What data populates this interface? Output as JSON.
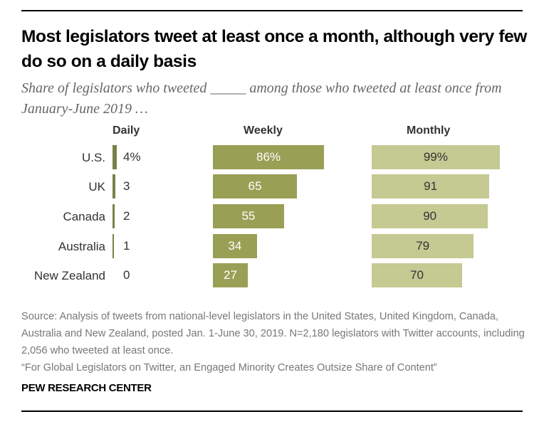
{
  "chart_data": {
    "type": "bar",
    "title": "Most legislators tweet at least once a month, although very few do so on a daily basis",
    "subtitle": "Share of legislators who tweeted _____ among those who tweeted at least once from January-June 2019 …",
    "categories": [
      "U.S.",
      "UK",
      "Canada",
      "Australia",
      "New Zealand"
    ],
    "series": [
      {
        "name": "Daily",
        "values": [
          4,
          3,
          2,
          1,
          0
        ],
        "labels": [
          "4%",
          "3",
          "2",
          "1",
          "0"
        ],
        "color": "#7b8048"
      },
      {
        "name": "Weekly",
        "values": [
          86,
          65,
          55,
          34,
          27
        ],
        "labels": [
          "86%",
          "65",
          "55",
          "34",
          "27"
        ],
        "color": "#9a9f56"
      },
      {
        "name": "Monthly",
        "values": [
          99,
          91,
          90,
          79,
          70
        ],
        "labels": [
          "99%",
          "91",
          "90",
          "79",
          "70"
        ],
        "color": "#c5c992"
      }
    ],
    "xlim": [
      0,
      100
    ],
    "grid": false,
    "legend": "none"
  },
  "source": "Source: Analysis of tweets from national-level legislators in the United States, United Kingdom, Canada, Australia and New Zealand, posted Jan. 1-June 30, 2019. N=2,180 legislators with Twitter accounts, including 2,056 who tweeted at least once.",
  "report": "“For Global Legislators on Twitter, an Engaged Minority Creates Outsize Share of Content”",
  "brand": "PEW RESEARCH CENTER"
}
